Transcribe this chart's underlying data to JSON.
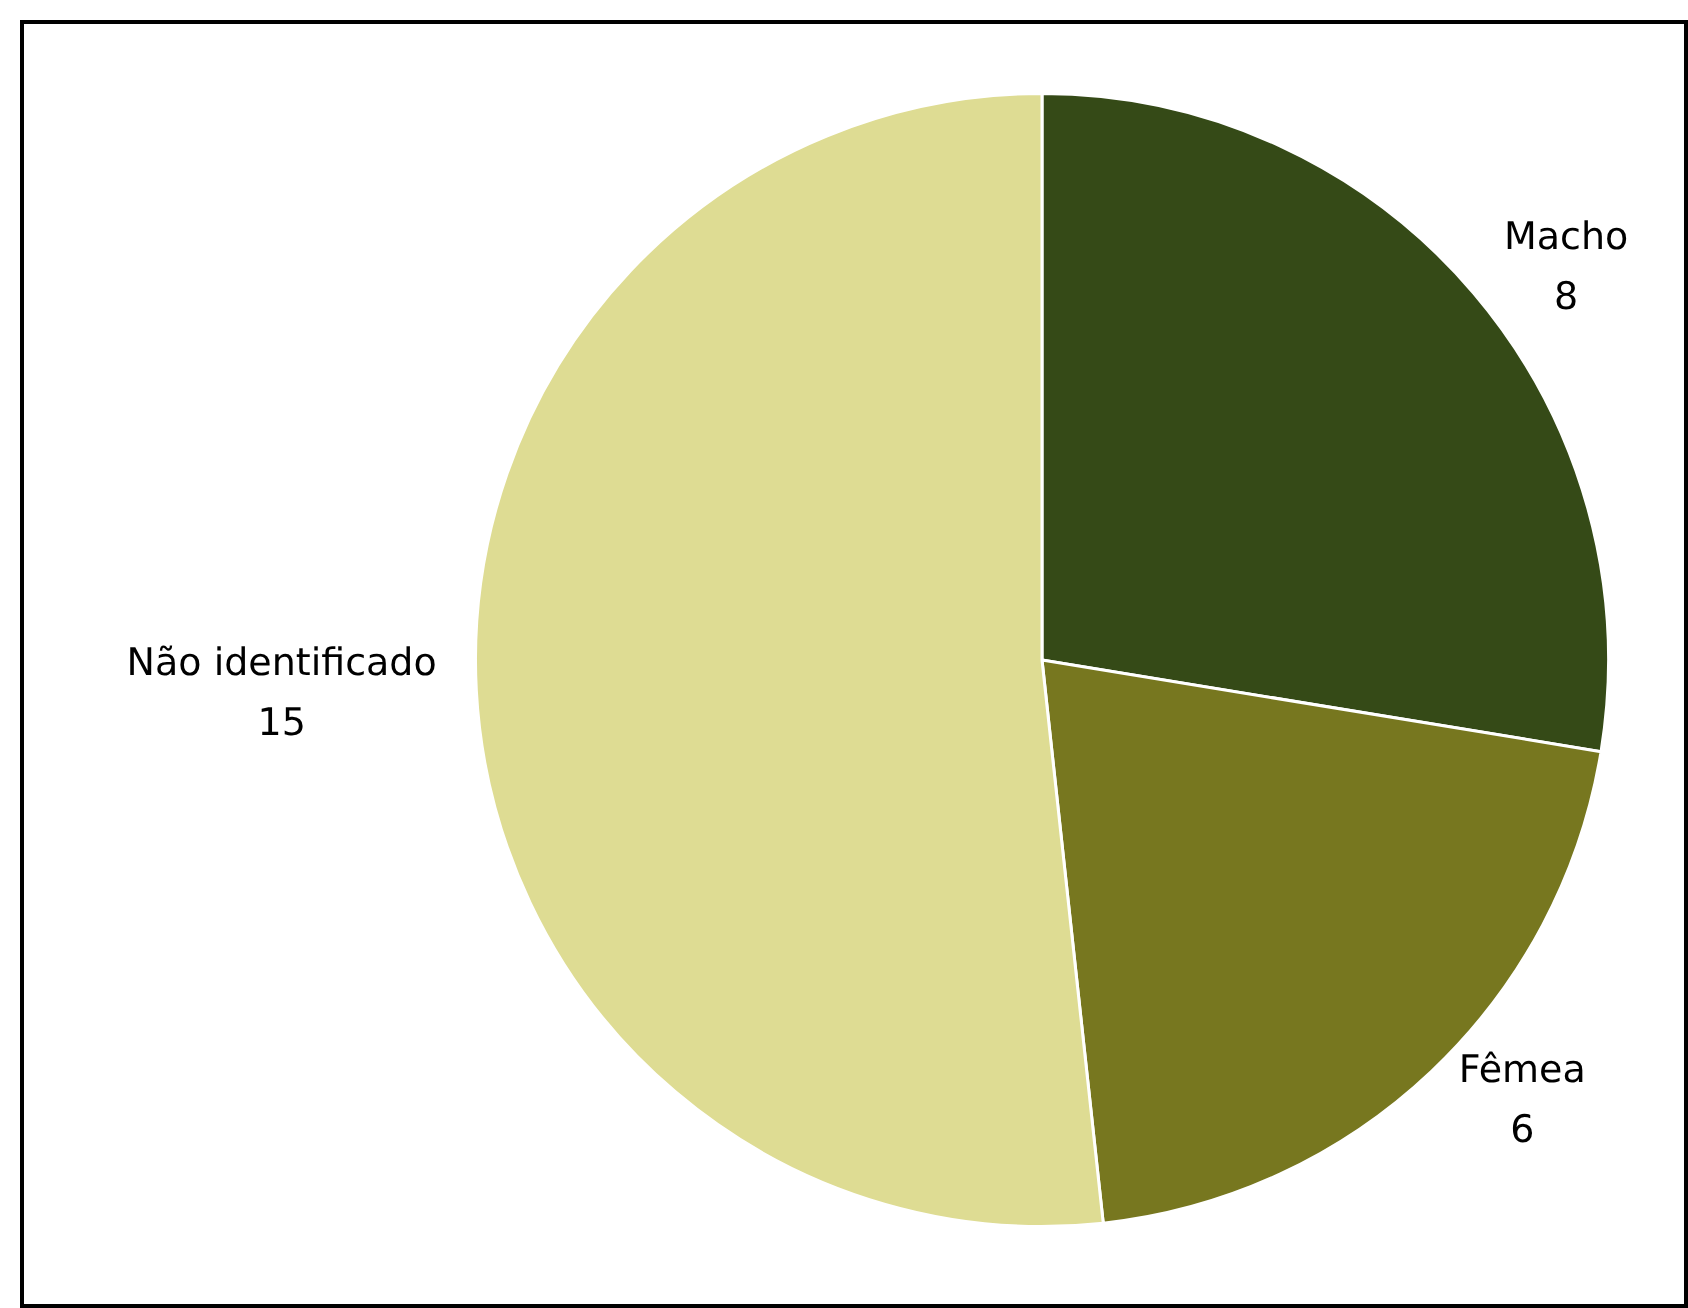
{
  "chart_data": {
    "type": "pie",
    "categories": [
      "Macho",
      "Fêmea",
      "Não identificado"
    ],
    "values": [
      8,
      6,
      15
    ],
    "colors": [
      "#354a17",
      "#77771f",
      "#dedc93"
    ],
    "data_labels": true,
    "legend": false
  }
}
